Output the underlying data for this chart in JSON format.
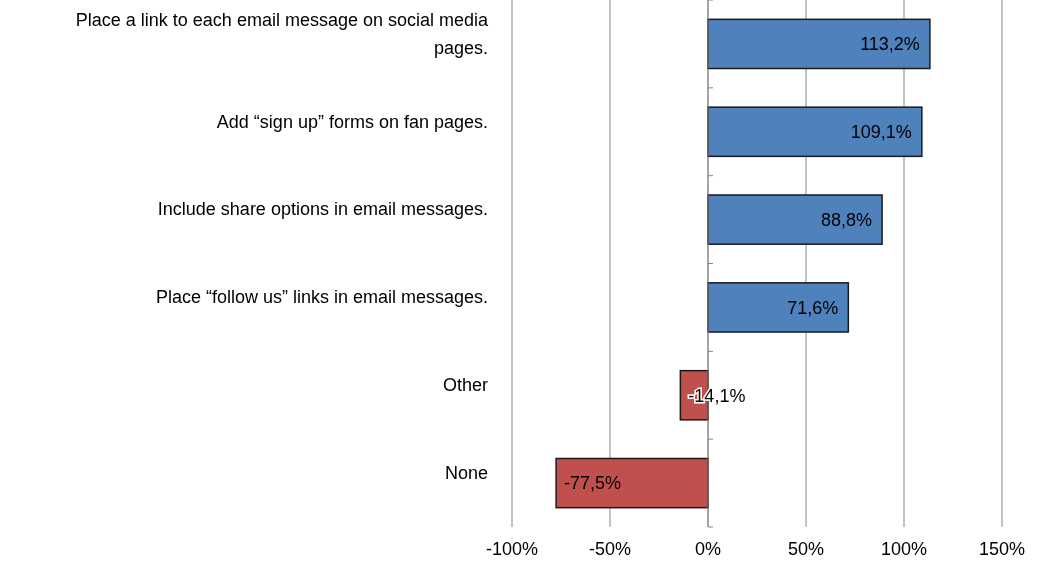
{
  "chart_data": {
    "type": "bar",
    "orientation": "horizontal",
    "categories": [
      "Place a link to each email message on social media pages.",
      "Add “sign up” forms on fan pages.",
      "Include share options in email messages.",
      "Place “follow us” links in email messages.",
      "Other",
      "None"
    ],
    "values": [
      113.2,
      109.1,
      88.8,
      71.6,
      -14.1,
      -77.5
    ],
    "colors": [
      "#4f81bd",
      "#4f81bd",
      "#4f81bd",
      "#4f81bd",
      "#c0504d",
      "#c0504d"
    ],
    "value_labels": [
      "113,2%",
      "109,1%",
      "88,8%",
      "71,6%",
      "-14,1%",
      "-77,5%"
    ],
    "xlim": [
      -100,
      150
    ],
    "xticks": [
      {
        "value": -100,
        "label": "-100%"
      },
      {
        "value": -50,
        "label": "-50%"
      },
      {
        "value": 0,
        "label": "0%"
      },
      {
        "value": 50,
        "label": "50%"
      },
      {
        "value": 100,
        "label": "100%"
      },
      {
        "value": 150,
        "label": "150%"
      }
    ],
    "grid": "x"
  }
}
